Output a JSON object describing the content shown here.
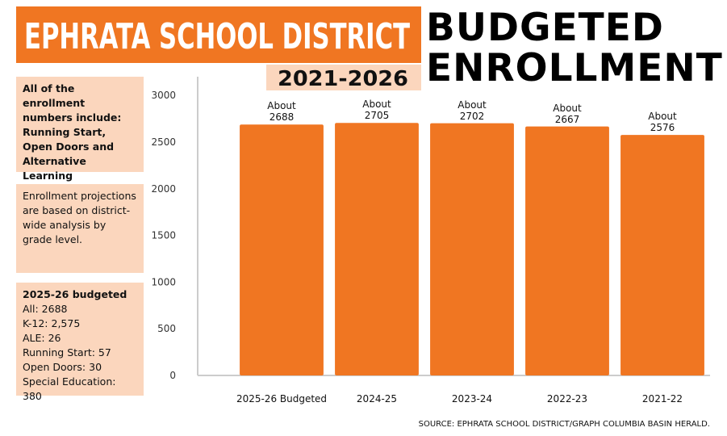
{
  "header": {
    "district": "EPHRATA SCHOOL DISTRICT",
    "years": "2021-2026"
  },
  "notes": [
    "All of the enrollment numbers include: Running Start, Open Doors and Alternative Learning Experiences.",
    "Enrollment projections are based on district-wide analysis by grade level."
  ],
  "breakdown": {
    "title": "2025-26 budgeted",
    "items": [
      "All: 2688",
      "K-12: 2,575",
      "ALE: 26",
      "Running Start: 57",
      "Open Doors: 30",
      "Special Education: 380"
    ]
  },
  "chart_data": {
    "type": "bar",
    "title": "BUDGETED ENROLLMENT",
    "categories": [
      "2025-26 Budgeted",
      "2024-25",
      "2023-24",
      "2022-23",
      "2021-22"
    ],
    "values": [
      2688,
      2705,
      2702,
      2667,
      2576
    ],
    "value_labels": [
      "About 2688",
      "About 2705",
      "About 2702",
      "About 2667",
      "About 2576"
    ],
    "color": "#f07622",
    "ylim": [
      0,
      3200
    ],
    "yticks": [
      0,
      500,
      1000,
      1500,
      2000,
      2500,
      3000
    ],
    "grid": false
  },
  "source": "SOURCE: EPHRATA SCHOOL DISTRICT/GRAPH COLUMBIA BASIN HERALD."
}
